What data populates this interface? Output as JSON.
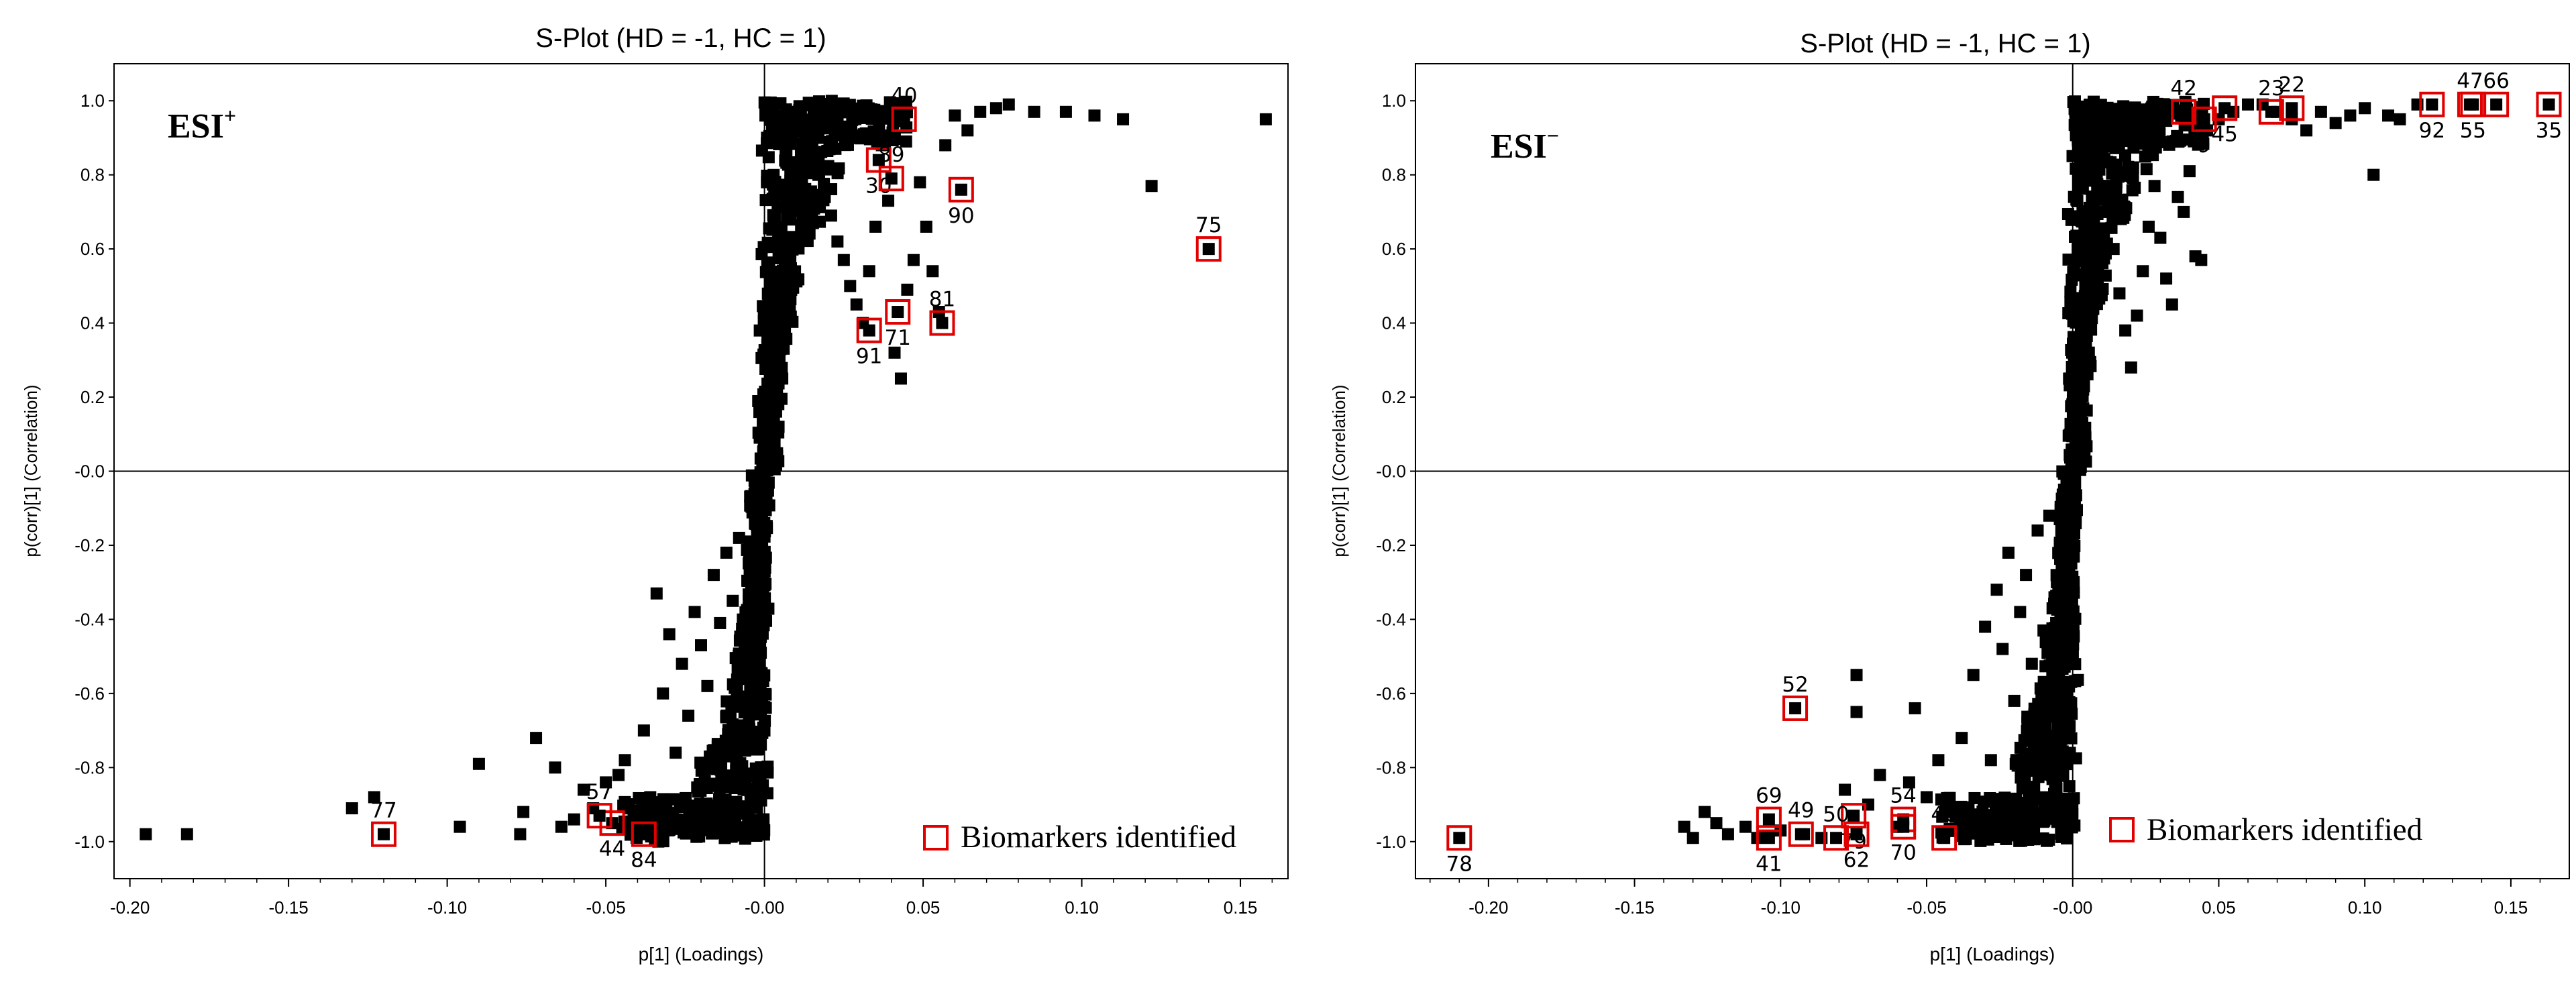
{
  "chart_data": [
    {
      "type": "scatter",
      "title": "S-Plot (HD = -1, HC = 1)",
      "mode_label": "ESI",
      "mode_sign": "+",
      "xlabel": "p[1] (Loadings)",
      "ylabel": "p(corr)[1] (Correlation)",
      "xlim": [
        -0.205,
        0.165
      ],
      "ylim": [
        -1.1,
        1.1
      ],
      "x_ticks": [
        "-0.20",
        "-0.15",
        "-0.10",
        "-0.05",
        "-0.00",
        "0.05",
        "0.10",
        "0.15"
      ],
      "y_ticks": [
        "1.0",
        "0.8",
        "0.6",
        "0.4",
        "0.2",
        "-0.0",
        "-0.2",
        "-0.4",
        "-0.6",
        "-0.8",
        "-1.0"
      ],
      "legend": "Biomarkers identified",
      "points": [
        [
          -0.195,
          -0.98
        ],
        [
          -0.182,
          -0.98
        ],
        [
          -0.13,
          -0.91
        ],
        [
          -0.123,
          -0.88
        ],
        [
          -0.09,
          -0.79
        ],
        [
          -0.096,
          -0.96
        ],
        [
          -0.077,
          -0.98
        ],
        [
          -0.076,
          -0.92
        ],
        [
          -0.072,
          -0.72
        ],
        [
          -0.066,
          -0.8
        ],
        [
          -0.064,
          -0.96
        ],
        [
          -0.06,
          -0.94
        ],
        [
          -0.057,
          -0.86
        ],
        [
          -0.054,
          -0.91
        ],
        [
          -0.05,
          -0.84
        ],
        [
          -0.046,
          -0.82
        ],
        [
          -0.044,
          -0.78
        ],
        [
          -0.04,
          -0.94
        ],
        [
          -0.038,
          -0.7
        ],
        [
          -0.036,
          -0.88
        ],
        [
          -0.034,
          -0.33
        ],
        [
          -0.032,
          -0.6
        ],
        [
          -0.03,
          -0.44
        ],
        [
          -0.028,
          -0.76
        ],
        [
          -0.026,
          -0.52
        ],
        [
          -0.024,
          -0.66
        ],
        [
          -0.022,
          -0.38
        ],
        [
          -0.02,
          -0.47
        ],
        [
          -0.018,
          -0.58
        ],
        [
          -0.016,
          -0.28
        ],
        [
          -0.014,
          -0.41
        ],
        [
          -0.012,
          -0.22
        ],
        [
          -0.01,
          -0.35
        ],
        [
          -0.008,
          -0.18
        ],
        [
          0.009,
          0.97
        ],
        [
          0.012,
          0.93
        ],
        [
          0.015,
          0.86
        ],
        [
          0.017,
          0.8
        ],
        [
          0.019,
          0.74
        ],
        [
          0.021,
          0.69
        ],
        [
          0.023,
          0.62
        ],
        [
          0.025,
          0.57
        ],
        [
          0.027,
          0.5
        ],
        [
          0.029,
          0.45
        ],
        [
          0.031,
          0.4
        ],
        [
          0.033,
          0.54
        ],
        [
          0.035,
          0.66
        ],
        [
          0.037,
          0.88
        ],
        [
          0.039,
          0.73
        ],
        [
          0.041,
          0.32
        ],
        [
          0.043,
          0.25
        ],
        [
          0.045,
          0.49
        ],
        [
          0.047,
          0.57
        ],
        [
          0.049,
          0.78
        ],
        [
          0.051,
          0.66
        ],
        [
          0.053,
          0.54
        ],
        [
          0.055,
          0.43
        ],
        [
          0.057,
          0.88
        ],
        [
          0.06,
          0.96
        ],
        [
          0.064,
          0.92
        ],
        [
          0.068,
          0.97
        ],
        [
          0.073,
          0.98
        ],
        [
          0.077,
          0.99
        ],
        [
          0.085,
          0.97
        ],
        [
          0.095,
          0.97
        ],
        [
          0.104,
          0.96
        ],
        [
          0.113,
          0.95
        ],
        [
          0.122,
          0.77
        ],
        [
          0.158,
          0.95
        ]
      ],
      "markers": [
        {
          "label": "40",
          "x": 0.044,
          "y": 0.95
        },
        {
          "label": "30",
          "x": 0.036,
          "y": 0.84
        },
        {
          "label": "89",
          "x": 0.04,
          "y": 0.79
        },
        {
          "label": "90",
          "x": 0.062,
          "y": 0.76
        },
        {
          "label": "75",
          "x": 0.14,
          "y": 0.6
        },
        {
          "label": "71",
          "x": 0.042,
          "y": 0.43
        },
        {
          "label": "81",
          "x": 0.056,
          "y": 0.4
        },
        {
          "label": "91",
          "x": 0.033,
          "y": 0.38
        },
        {
          "label": "77",
          "x": -0.12,
          "y": -0.98
        },
        {
          "label": "44",
          "x": -0.048,
          "y": -0.95
        },
        {
          "label": "57",
          "x": -0.052,
          "y": -0.93
        },
        {
          "label": "84",
          "x": -0.038,
          "y": -0.98
        }
      ]
    },
    {
      "type": "scatter",
      "title": "S-Plot (HD = -1, HC = 1)",
      "mode_label": "ESI",
      "mode_sign": "−",
      "xlabel": "p[1] (Loadings)",
      "ylabel": "p(corr)[1] (Correlation)",
      "xlim": [
        -0.225,
        0.17
      ],
      "ylim": [
        -1.1,
        1.1
      ],
      "x_ticks": [
        "-0.20",
        "-0.15",
        "-0.10",
        "-0.05",
        "-0.00",
        "0.05",
        "0.10",
        "0.15"
      ],
      "y_ticks": [
        "1.0",
        "0.8",
        "0.6",
        "0.4",
        "0.2",
        "-0.0",
        "-0.2",
        "-0.4",
        "-0.6",
        "-0.8",
        "-1.0"
      ],
      "legend": "Biomarkers identified",
      "points": [
        [
          -0.133,
          -0.96
        ],
        [
          -0.13,
          -0.99
        ],
        [
          -0.126,
          -0.92
        ],
        [
          -0.122,
          -0.95
        ],
        [
          -0.118,
          -0.98
        ],
        [
          -0.112,
          -0.96
        ],
        [
          -0.108,
          -0.99
        ],
        [
          -0.1,
          -0.97
        ],
        [
          -0.092,
          -0.98
        ],
        [
          -0.086,
          -0.99
        ],
        [
          -0.078,
          -0.86
        ],
        [
          -0.074,
          -0.55
        ],
        [
          -0.074,
          -0.65
        ],
        [
          -0.07,
          -0.9
        ],
        [
          -0.066,
          -0.82
        ],
        [
          -0.06,
          -0.96
        ],
        [
          -0.056,
          -0.84
        ],
        [
          -0.054,
          -0.64
        ],
        [
          -0.05,
          -0.88
        ],
        [
          -0.046,
          -0.78
        ],
        [
          -0.042,
          -0.92
        ],
        [
          -0.038,
          -0.72
        ],
        [
          -0.034,
          -0.55
        ],
        [
          -0.03,
          -0.42
        ],
        [
          -0.028,
          -0.78
        ],
        [
          -0.026,
          -0.32
        ],
        [
          -0.024,
          -0.48
        ],
        [
          -0.022,
          -0.22
        ],
        [
          -0.02,
          -0.62
        ],
        [
          -0.018,
          -0.38
        ],
        [
          -0.016,
          -0.28
        ],
        [
          -0.014,
          -0.52
        ],
        [
          -0.012,
          -0.16
        ],
        [
          -0.01,
          -0.43
        ],
        [
          -0.008,
          -0.12
        ],
        [
          0.008,
          0.96
        ],
        [
          0.01,
          0.85
        ],
        [
          0.012,
          0.72
        ],
        [
          0.014,
          0.6
        ],
        [
          0.016,
          0.48
        ],
        [
          0.018,
          0.38
        ],
        [
          0.02,
          0.28
        ],
        [
          0.022,
          0.42
        ],
        [
          0.024,
          0.54
        ],
        [
          0.026,
          0.66
        ],
        [
          0.028,
          0.77
        ],
        [
          0.03,
          0.63
        ],
        [
          0.032,
          0.52
        ],
        [
          0.034,
          0.45
        ],
        [
          0.036,
          0.74
        ],
        [
          0.038,
          0.7
        ],
        [
          0.04,
          0.81
        ],
        [
          0.042,
          0.58
        ],
        [
          0.044,
          0.57
        ],
        [
          0.046,
          0.92
        ],
        [
          0.05,
          0.95
        ],
        [
          0.055,
          0.97
        ],
        [
          0.06,
          0.99
        ],
        [
          0.065,
          0.99
        ],
        [
          0.07,
          0.97
        ],
        [
          0.075,
          0.95
        ],
        [
          0.08,
          0.92
        ],
        [
          0.085,
          0.97
        ],
        [
          0.09,
          0.94
        ],
        [
          0.095,
          0.96
        ],
        [
          0.1,
          0.98
        ],
        [
          0.103,
          0.8
        ],
        [
          0.108,
          0.96
        ],
        [
          0.112,
          0.95
        ],
        [
          0.118,
          0.99
        ]
      ],
      "markers": [
        {
          "label": "42",
          "x": 0.038,
          "y": 0.97
        },
        {
          "label": "45",
          "x": 0.052,
          "y": 0.98
        },
        {
          "label": "22",
          "x": 0.075,
          "y": 0.98
        },
        {
          "label": "9",
          "x": 0.045,
          "y": 0.95
        },
        {
          "label": "23",
          "x": 0.068,
          "y": 0.97
        },
        {
          "label": "92",
          "x": 0.123,
          "y": 0.99
        },
        {
          "label": "47",
          "x": 0.136,
          "y": 0.99
        },
        {
          "label": "55",
          "x": 0.137,
          "y": 0.99
        },
        {
          "label": "66",
          "x": 0.145,
          "y": 0.99
        },
        {
          "label": "35",
          "x": 0.163,
          "y": 0.99
        },
        {
          "label": "52",
          "x": -0.095,
          "y": -0.64
        },
        {
          "label": "78",
          "x": -0.21,
          "y": -0.99
        },
        {
          "label": "69",
          "x": -0.104,
          "y": -0.94
        },
        {
          "label": "41",
          "x": -0.104,
          "y": -0.99
        },
        {
          "label": "49",
          "x": -0.093,
          "y": -0.98
        },
        {
          "label": "79",
          "x": -0.075,
          "y": -0.93
        },
        {
          "label": "50",
          "x": -0.081,
          "y": -0.99
        },
        {
          "label": "62",
          "x": -0.074,
          "y": -0.98
        },
        {
          "label": "54",
          "x": -0.058,
          "y": -0.94
        },
        {
          "label": "70",
          "x": -0.058,
          "y": -0.96
        },
        {
          "label": "46",
          "x": -0.044,
          "y": -0.99
        }
      ]
    }
  ]
}
